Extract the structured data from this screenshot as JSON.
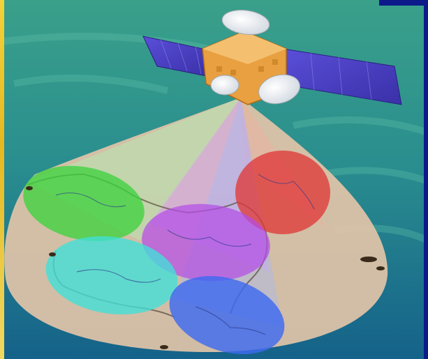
{
  "scene": {
    "description_colors": {
      "sea_top": "#2f9a86",
      "sea_bottom": "#1a6c86",
      "footprint": "#e2c4a8",
      "beam_green": "#3fd23f",
      "beam_red": "#e03a3a",
      "beam_purple": "#b44ee8",
      "beam_cyan": "#3fe0d8",
      "beam_blue": "#3e6af0",
      "solar_panel": "#4a3fc8",
      "satellite_body": "#e8a040"
    },
    "icons": [
      "satellite-icon",
      "coverage-beam-icon"
    ]
  }
}
